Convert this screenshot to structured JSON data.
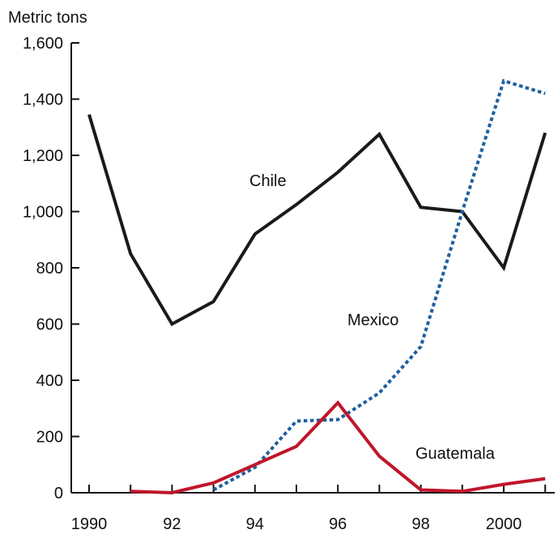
{
  "chart_data": {
    "type": "line",
    "title": "",
    "ylabel": "Metric tons",
    "xlabel": "",
    "x": [
      1990,
      1991,
      1992,
      1993,
      1994,
      1995,
      1996,
      1997,
      1998,
      1999,
      2000,
      2001
    ],
    "xlim": [
      1990,
      2001.3
    ],
    "ylim": [
      0,
      1600
    ],
    "x_ticks": [
      1990,
      1992,
      1994,
      1996,
      1998,
      2000
    ],
    "x_tick_labels": [
      "1990",
      "92",
      "94",
      "96",
      "98",
      "2000"
    ],
    "y_ticks": [
      0,
      200,
      400,
      600,
      800,
      1000,
      1200,
      1400,
      1600
    ],
    "y_tick_labels": [
      "0",
      "200",
      "400",
      "600",
      "800",
      "1,000",
      "1,200",
      "1,400",
      "1,600"
    ],
    "grid": false,
    "legend": "none",
    "series": [
      {
        "name": "Chile",
        "color": "#1a1a1a",
        "style": "solid",
        "values": [
          1345,
          850,
          600,
          680,
          920,
          1025,
          1140,
          1275,
          1015,
          1000,
          800,
          1280
        ]
      },
      {
        "name": "Mexico",
        "color": "#1f5fa0",
        "style": "dotted",
        "values": [
          null,
          null,
          null,
          10,
          90,
          255,
          260,
          355,
          520,
          1000,
          1465,
          1420
        ]
      },
      {
        "name": "Guatemala",
        "color": "#c0152a",
        "style": "solid",
        "values": [
          null,
          5,
          0,
          35,
          100,
          165,
          320,
          130,
          10,
          5,
          30,
          50
        ]
      }
    ]
  }
}
